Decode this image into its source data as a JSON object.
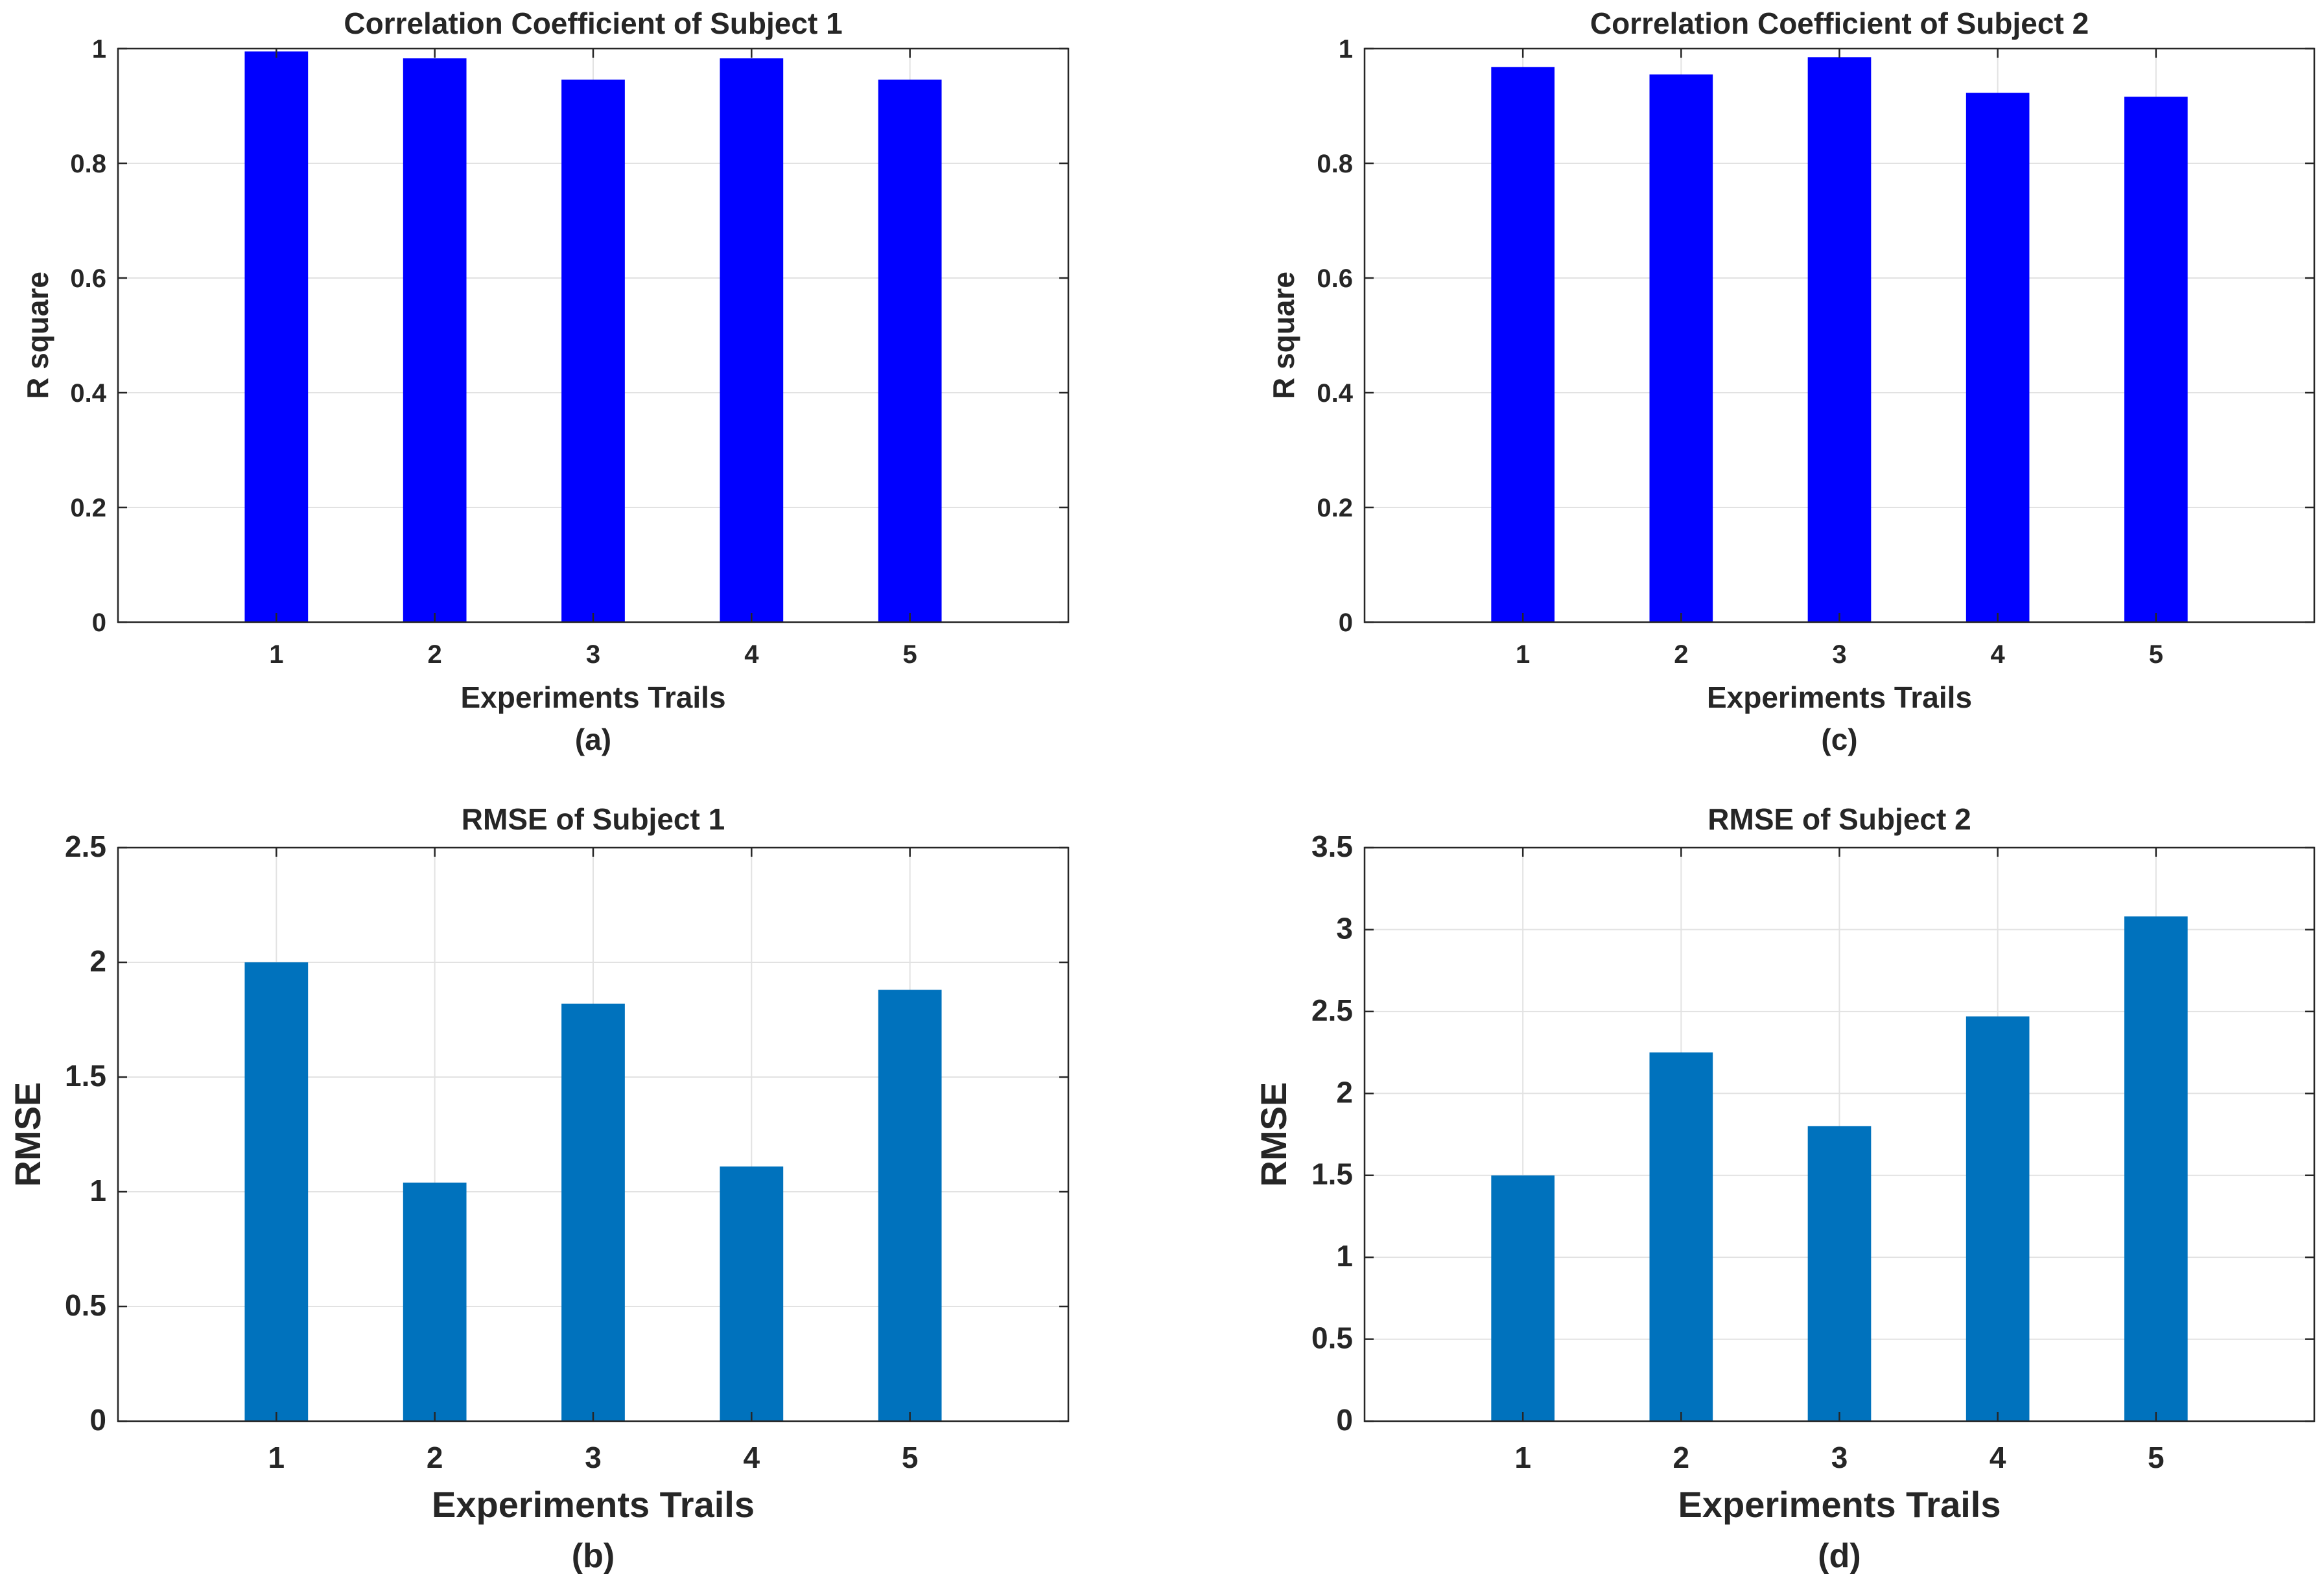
{
  "chart_data": [
    {
      "id": "a",
      "type": "bar",
      "title": "Correlation Coefficient of Subject 1",
      "xlabel": "Experiments Trails",
      "ylabel": "R square",
      "caption": "(a)",
      "categories": [
        "1",
        "2",
        "3",
        "4",
        "5"
      ],
      "values": [
        0.995,
        0.983,
        0.946,
        0.983,
        0.946
      ],
      "xlim": [
        0,
        6
      ],
      "ylim": [
        0,
        1
      ],
      "yticks": [
        0,
        0.2,
        0.4,
        0.6,
        0.8,
        1
      ],
      "ytick_labels": [
        "0",
        "0.2",
        "0.4",
        "0.6",
        "0.8",
        "1"
      ],
      "bar_color": "#0000FF",
      "grid": true
    },
    {
      "id": "c",
      "type": "bar",
      "title": "Correlation Coefficient of Subject 2",
      "xlabel": "Experiments Trails",
      "ylabel": "R square",
      "caption": "(c)",
      "categories": [
        "1",
        "2",
        "3",
        "4",
        "5"
      ],
      "values": [
        0.968,
        0.955,
        0.985,
        0.923,
        0.916
      ],
      "xlim": [
        0,
        6
      ],
      "ylim": [
        0,
        1
      ],
      "yticks": [
        0,
        0.2,
        0.4,
        0.6,
        0.8,
        1
      ],
      "ytick_labels": [
        "0",
        "0.2",
        "0.4",
        "0.6",
        "0.8",
        "1"
      ],
      "bar_color": "#0000FF",
      "grid": true
    },
    {
      "id": "b",
      "type": "bar",
      "title": "RMSE of Subject 1",
      "xlabel": "Experiments Trails",
      "ylabel": "RMSE",
      "caption": "(b)",
      "categories": [
        "1",
        "2",
        "3",
        "4",
        "5"
      ],
      "values": [
        2.0,
        1.04,
        1.82,
        1.11,
        1.88
      ],
      "xlim": [
        0,
        6
      ],
      "ylim": [
        0,
        2.5
      ],
      "yticks": [
        0,
        0.5,
        1,
        1.5,
        2,
        2.5
      ],
      "ytick_labels": [
        "0",
        "0.5",
        "1",
        "1.5",
        "2",
        "2.5"
      ],
      "bar_color": "#0072BD",
      "grid": true
    },
    {
      "id": "d",
      "type": "bar",
      "title": "RMSE of Subject 2",
      "xlabel": "Experiments Trails",
      "ylabel": "RMSE",
      "caption": "(d)",
      "categories": [
        "1",
        "2",
        "3",
        "4",
        "5"
      ],
      "values": [
        1.5,
        2.25,
        1.8,
        2.47,
        3.08
      ],
      "xlim": [
        0,
        6
      ],
      "ylim": [
        0,
        3.5
      ],
      "yticks": [
        0,
        0.5,
        1,
        1.5,
        2,
        2.5,
        3,
        3.5
      ],
      "ytick_labels": [
        "0",
        "0.5",
        "1",
        "1.5",
        "2",
        "2.5",
        "3",
        "3.5"
      ],
      "bar_color": "#0072BD",
      "grid": true
    }
  ]
}
